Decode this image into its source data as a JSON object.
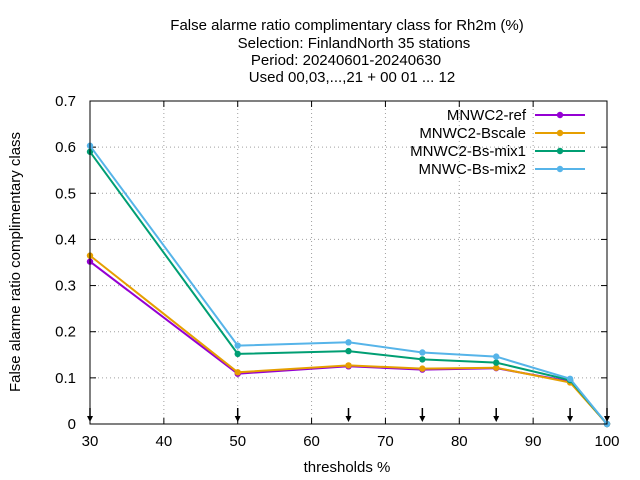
{
  "chart_data": {
    "type": "line",
    "title_lines": [
      "False alarme ratio complimentary class  for Rh2m (%)",
      "Selection: FinlandNorth     35 stations",
      "Period: 20240601-20240630",
      "Used 00,03,...,21 + 00 01 ... 12"
    ],
    "xlabel": "thresholds %",
    "ylabel": "False alarme ratio complimentary class",
    "xlim": [
      30,
      100
    ],
    "ylim": [
      0,
      0.7
    ],
    "x_ticks": [
      30,
      40,
      50,
      60,
      70,
      80,
      90,
      100
    ],
    "y_ticks": [
      0,
      0.1,
      0.2,
      0.3,
      0.4,
      0.5,
      0.6,
      0.7
    ],
    "x_tick_labels": [
      "30",
      "40",
      "50",
      "60",
      "70",
      "80",
      "90",
      "100"
    ],
    "y_tick_labels": [
      "0",
      "0.1",
      "0.2",
      "0.3",
      "0.4",
      "0.5",
      "0.6",
      "0.7"
    ],
    "grid": true,
    "legend_position": "top-right",
    "threshold_markers": [
      30,
      50,
      65,
      75,
      85,
      95,
      100
    ],
    "x": [
      30,
      50,
      65,
      75,
      85,
      95,
      100
    ],
    "series": [
      {
        "name": "MNWC2-ref",
        "color": "#9400d3",
        "values": [
          0.352,
          0.109,
          0.125,
          0.118,
          0.121,
          0.092,
          0.0
        ]
      },
      {
        "name": "MNWC2-Bscale",
        "color": "#e69f00",
        "values": [
          0.365,
          0.112,
          0.127,
          0.12,
          0.122,
          0.09,
          0.0
        ]
      },
      {
        "name": "MNWC2-Bs-mix1",
        "color": "#009e73",
        "values": [
          0.59,
          0.152,
          0.158,
          0.14,
          0.133,
          0.095,
          0.0
        ]
      },
      {
        "name": "MNWC-Bs-mix2",
        "color": "#56b4e9",
        "values": [
          0.603,
          0.17,
          0.177,
          0.155,
          0.146,
          0.098,
          0.0
        ]
      }
    ]
  }
}
